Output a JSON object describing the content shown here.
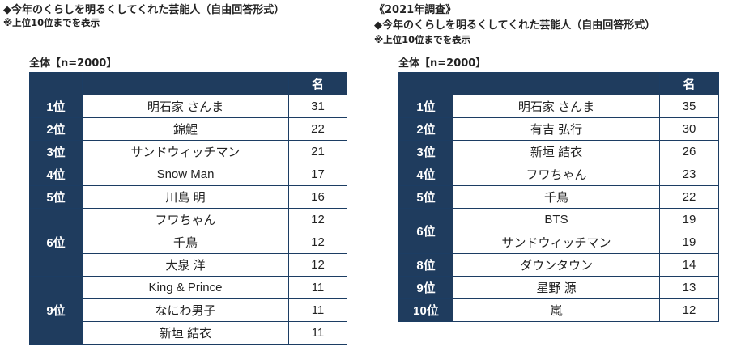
{
  "left": {
    "title": "◆今年のくらしを明るくしてくれた芸能人（自由回答形式）",
    "note": "※上位10位までを表示",
    "subtitle": "全体【n=2000】",
    "col_header": "名"
  },
  "right": {
    "year": "《2021年調査》",
    "title": "◆今年のくらしを明るくしてくれた芸能人（自由回答形式）",
    "note": "※上位10位までを表示",
    "subtitle": "全体【n=2000】",
    "col_header": "名"
  },
  "chart_data": [
    {
      "type": "table",
      "title": "◆今年のくらしを明るくしてくれた芸能人（自由回答形式）",
      "subtitle": "全体【n=2000】",
      "columns": [
        "",
        "",
        "名"
      ],
      "groups": [
        {
          "rank": "1位",
          "items": [
            {
              "name": "明石家 さんま",
              "value": 31
            }
          ]
        },
        {
          "rank": "2位",
          "items": [
            {
              "name": "錦鯉",
              "value": 22
            }
          ]
        },
        {
          "rank": "3位",
          "items": [
            {
              "name": "サンドウィッチマン",
              "value": 21
            }
          ]
        },
        {
          "rank": "4位",
          "items": [
            {
              "name": "Snow Man",
              "value": 17
            }
          ]
        },
        {
          "rank": "5位",
          "items": [
            {
              "name": "川島 明",
              "value": 16
            }
          ]
        },
        {
          "rank": "6位",
          "items": [
            {
              "name": "フワちゃん",
              "value": 12
            },
            {
              "name": "千鳥",
              "value": 12
            },
            {
              "name": "大泉 洋",
              "value": 12
            }
          ]
        },
        {
          "rank": "9位",
          "items": [
            {
              "name": "King & Prince",
              "value": 11
            },
            {
              "name": "なにわ男子",
              "value": 11
            },
            {
              "name": "新垣 結衣",
              "value": 11
            }
          ]
        }
      ]
    },
    {
      "type": "table",
      "title": "《2021年調査》",
      "subtitle": "全体【n=2000】",
      "columns": [
        "",
        "",
        "名"
      ],
      "groups": [
        {
          "rank": "1位",
          "items": [
            {
              "name": "明石家 さんま",
              "value": 35
            }
          ]
        },
        {
          "rank": "2位",
          "items": [
            {
              "name": "有吉 弘行",
              "value": 30
            }
          ]
        },
        {
          "rank": "3位",
          "items": [
            {
              "name": "新垣 結衣",
              "value": 26
            }
          ]
        },
        {
          "rank": "4位",
          "items": [
            {
              "name": "フワちゃん",
              "value": 23
            }
          ]
        },
        {
          "rank": "5位",
          "items": [
            {
              "name": "千鳥",
              "value": 22
            }
          ]
        },
        {
          "rank": "6位",
          "items": [
            {
              "name": "BTS",
              "value": 19
            },
            {
              "name": "サンドウィッチマン",
              "value": 19
            }
          ]
        },
        {
          "rank": "8位",
          "items": [
            {
              "name": "ダウンタウン",
              "value": 14
            }
          ]
        },
        {
          "rank": "9位",
          "items": [
            {
              "name": "星野 源",
              "value": 13
            }
          ]
        },
        {
          "rank": "10位",
          "items": [
            {
              "name": "嵐",
              "value": 12
            }
          ]
        }
      ]
    }
  ]
}
